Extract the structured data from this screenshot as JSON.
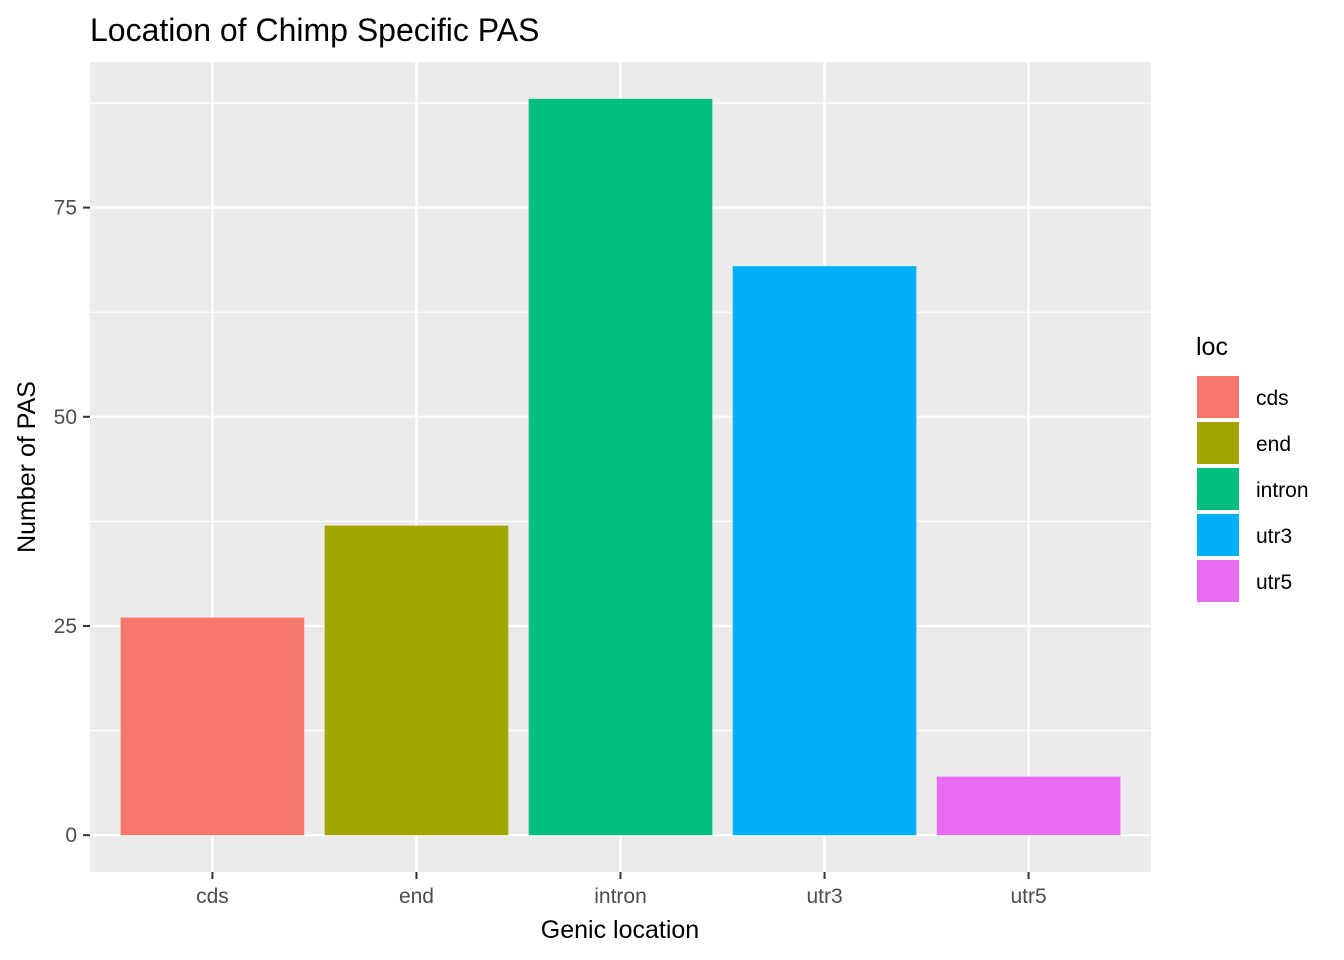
{
  "chart_data": {
    "type": "bar",
    "title": "Location of Chimp Specific PAS",
    "xlabel": "Genic location",
    "ylabel": "Number of PAS",
    "categories": [
      "cds",
      "end",
      "intron",
      "utr3",
      "utr5"
    ],
    "values": [
      26,
      37,
      88,
      68,
      7
    ],
    "colors": [
      "#F8766D",
      "#A3A500",
      "#00BF7D",
      "#00B0F6",
      "#E76BF3"
    ],
    "ylim": [
      -4.4,
      92.4
    ],
    "yticks": [
      0,
      25,
      50,
      75
    ],
    "grid": true,
    "panel_background": "#EBEBEB",
    "legend": {
      "title": "loc",
      "position": "right",
      "entries": [
        "cds",
        "end",
        "intron",
        "utr3",
        "utr5"
      ]
    }
  }
}
